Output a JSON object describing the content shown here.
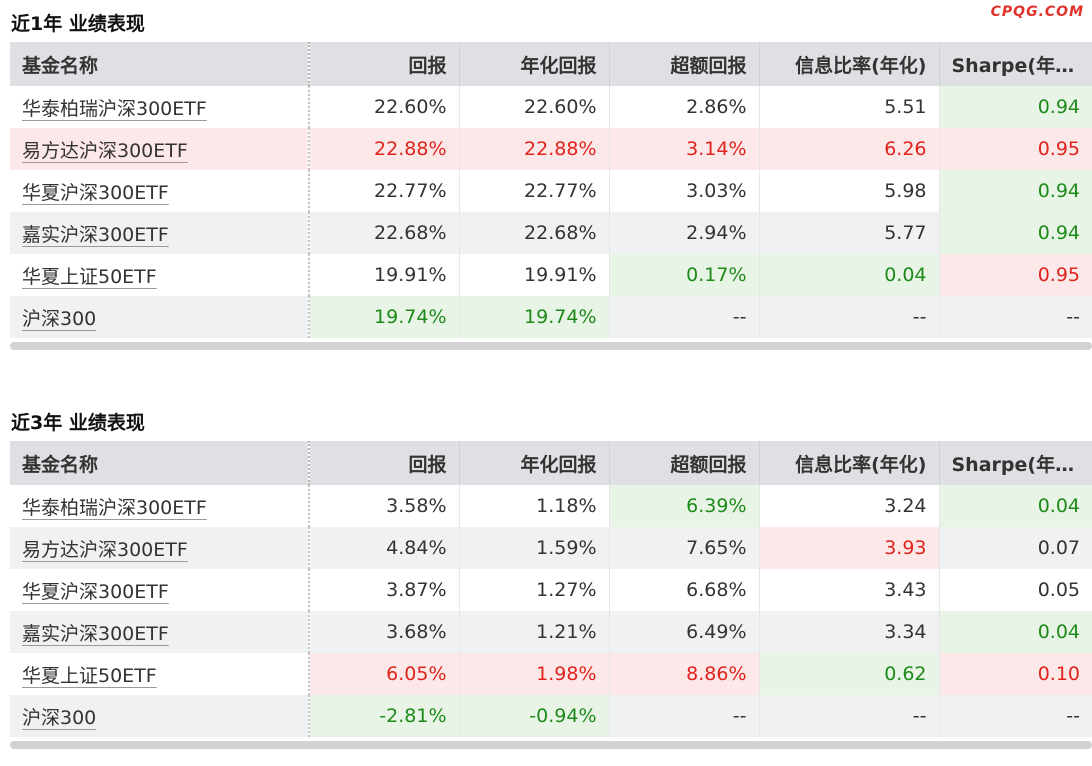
{
  "watermark": "CPQG.COM",
  "columns": [
    "基金名称",
    "回报",
    "年化回报",
    "超额回报",
    "信息比率(年化)",
    "Sharpe(年化)"
  ],
  "sections": [
    {
      "title": "近1年 业绩表现",
      "rows": [
        {
          "name": "华泰柏瑞沪深300ETF",
          "ret": "22.60%",
          "ann": "22.60%",
          "excess": "2.86%",
          "ir": "5.51",
          "sharpe": "0.94"
        },
        {
          "name": "易方达沪深300ETF",
          "ret": "22.88%",
          "ann": "22.88%",
          "excess": "3.14%",
          "ir": "6.26",
          "sharpe": "0.95"
        },
        {
          "name": "华夏沪深300ETF",
          "ret": "22.77%",
          "ann": "22.77%",
          "excess": "3.03%",
          "ir": "5.98",
          "sharpe": "0.94"
        },
        {
          "name": "嘉实沪深300ETF",
          "ret": "22.68%",
          "ann": "22.68%",
          "excess": "2.94%",
          "ir": "5.77",
          "sharpe": "0.94"
        },
        {
          "name": "华夏上证50ETF",
          "ret": "19.91%",
          "ann": "19.91%",
          "excess": "0.17%",
          "ir": "0.04",
          "sharpe": "0.95"
        },
        {
          "name": "沪深300",
          "ret": "19.74%",
          "ann": "19.74%",
          "excess": "--",
          "ir": "--",
          "sharpe": "--"
        }
      ]
    },
    {
      "title": "近3年 业绩表现",
      "rows": [
        {
          "name": "华泰柏瑞沪深300ETF",
          "ret": "3.58%",
          "ann": "1.18%",
          "excess": "6.39%",
          "ir": "3.24",
          "sharpe": "0.04"
        },
        {
          "name": "易方达沪深300ETF",
          "ret": "4.84%",
          "ann": "1.59%",
          "excess": "7.65%",
          "ir": "3.93",
          "sharpe": "0.07"
        },
        {
          "name": "华夏沪深300ETF",
          "ret": "3.87%",
          "ann": "1.27%",
          "excess": "6.68%",
          "ir": "3.43",
          "sharpe": "0.05"
        },
        {
          "name": "嘉实沪深300ETF",
          "ret": "3.68%",
          "ann": "1.21%",
          "excess": "6.49%",
          "ir": "3.34",
          "sharpe": "0.04"
        },
        {
          "name": "华夏上证50ETF",
          "ret": "6.05%",
          "ann": "1.98%",
          "excess": "8.86%",
          "ir": "0.62",
          "sharpe": "0.10"
        },
        {
          "name": "沪深300",
          "ret": "-2.81%",
          "ann": "-0.94%",
          "excess": "--",
          "ir": "--",
          "sharpe": "--"
        }
      ]
    }
  ],
  "colors": {
    "header_bg": "#dfe0e3",
    "highlight_red_bg": "#fce8e8",
    "highlight_green_bg": "#e8f5e6",
    "red_text": "#e0231c",
    "green_text": "#1d8a1a"
  }
}
